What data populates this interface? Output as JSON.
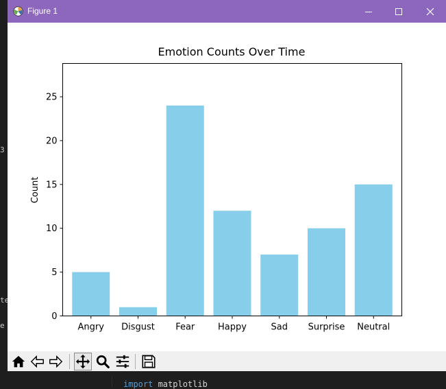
{
  "window": {
    "title": "Figure 1",
    "titlebar_color": "#8c67bd"
  },
  "background_code": {
    "keyword": "import",
    "text": " matplotlib"
  },
  "toolbar": {
    "buttons": [
      "home-icon",
      "back-arrow-icon",
      "forward-arrow-icon",
      "pan-icon",
      "zoom-icon",
      "configure-subplots-icon",
      "save-icon"
    ],
    "active": "pan-icon"
  },
  "chart_data": {
    "type": "bar",
    "title": "Emotion Counts Over Time",
    "xlabel": "",
    "ylabel": "Count",
    "categories": [
      "Angry",
      "Disgust",
      "Fear",
      "Happy",
      "Sad",
      "Surprise",
      "Neutral"
    ],
    "values": [
      5,
      1,
      24,
      12,
      7,
      10,
      15
    ],
    "ylim": [
      0,
      28.8
    ],
    "yticks": [
      0,
      5,
      10,
      15,
      20,
      25
    ],
    "bar_color": "#87ceeb",
    "grid": false,
    "legend": "none"
  }
}
